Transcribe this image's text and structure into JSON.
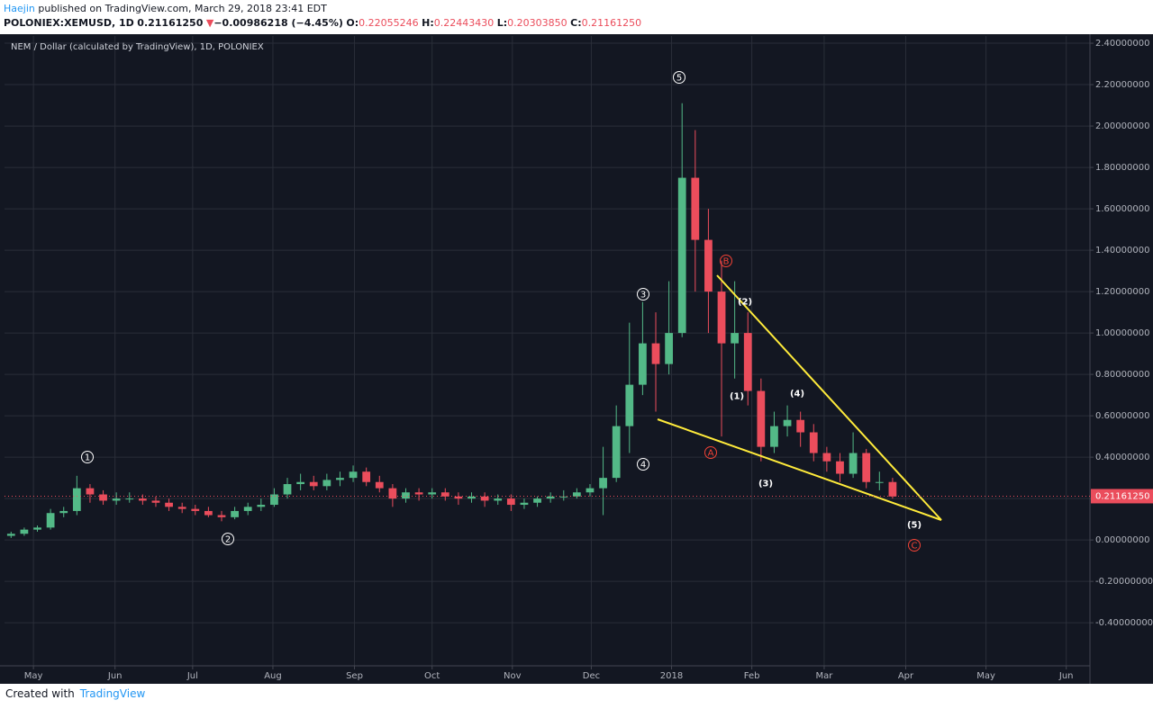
{
  "header": {
    "author": "Haejin",
    "published": "published on TradingView.com, March 29, 2018 23:41 EDT",
    "symbol": "POLONIEX:XEMUSD, 1D",
    "last": "0.21161250",
    "arrow": "▼",
    "change": "−0.00986218 (−4.45%)",
    "open_label": "O:",
    "open": "0.22055246",
    "high_label": "H:",
    "high": "0.22443430",
    "low_label": "L:",
    "low": "0.20303850",
    "close_label": "C:",
    "close": "0.21161250"
  },
  "chart_data": {
    "type": "candlestick",
    "title": "NEM / Dollar (calculated by TradingView), 1D, POLONIEX",
    "up_color": "#53b987",
    "down_color": "#eb4d5c",
    "grid": true,
    "open": [
      0.02,
      0.03,
      0.05,
      0.06,
      0.13,
      0.14,
      0.25,
      0.22,
      0.19,
      0.2,
      0.2,
      0.19,
      0.18,
      0.16,
      0.15,
      0.14,
      0.12,
      0.11,
      0.14,
      0.16,
      0.17,
      0.22,
      0.27,
      0.28,
      0.26,
      0.29,
      0.3,
      0.33,
      0.28,
      0.25,
      0.2,
      0.23,
      0.22,
      0.23,
      0.21,
      0.2,
      0.21,
      0.19,
      0.2,
      0.17,
      0.18,
      0.2,
      0.21,
      0.21,
      0.23,
      0.25,
      0.3,
      0.55,
      0.75,
      0.95,
      0.85,
      1.0,
      1.75,
      1.45,
      1.2,
      0.95,
      1.0,
      0.72,
      0.45,
      0.55,
      0.58,
      0.52,
      0.42,
      0.38,
      0.32,
      0.42,
      0.28,
      0.28
    ],
    "high": [
      0.04,
      0.06,
      0.07,
      0.15,
      0.16,
      0.31,
      0.27,
      0.24,
      0.23,
      0.23,
      0.22,
      0.21,
      0.2,
      0.18,
      0.17,
      0.16,
      0.14,
      0.16,
      0.18,
      0.2,
      0.25,
      0.3,
      0.32,
      0.31,
      0.32,
      0.33,
      0.36,
      0.35,
      0.31,
      0.27,
      0.25,
      0.25,
      0.25,
      0.25,
      0.23,
      0.23,
      0.23,
      0.22,
      0.22,
      0.2,
      0.21,
      0.23,
      0.24,
      0.25,
      0.27,
      0.45,
      0.65,
      1.05,
      1.15,
      1.1,
      1.25,
      2.11,
      1.98,
      1.6,
      1.35,
      1.25,
      1.1,
      0.78,
      0.62,
      0.65,
      0.62,
      0.56,
      0.45,
      0.42,
      0.52,
      0.44,
      0.33,
      0.3
    ],
    "low": [
      0.01,
      0.02,
      0.04,
      0.05,
      0.11,
      0.12,
      0.18,
      0.17,
      0.17,
      0.18,
      0.17,
      0.16,
      0.14,
      0.13,
      0.12,
      0.11,
      0.09,
      0.1,
      0.12,
      0.14,
      0.16,
      0.2,
      0.24,
      0.24,
      0.24,
      0.26,
      0.28,
      0.26,
      0.23,
      0.16,
      0.18,
      0.19,
      0.2,
      0.19,
      0.17,
      0.18,
      0.16,
      0.17,
      0.14,
      0.15,
      0.16,
      0.18,
      0.19,
      0.2,
      0.21,
      0.12,
      0.28,
      0.42,
      0.7,
      0.62,
      0.8,
      0.98,
      1.2,
      1.0,
      0.5,
      0.78,
      0.65,
      0.38,
      0.42,
      0.5,
      0.45,
      0.38,
      0.33,
      0.28,
      0.3,
      0.25,
      0.24,
      0.2
    ],
    "close": [
      0.03,
      0.05,
      0.06,
      0.13,
      0.14,
      0.25,
      0.22,
      0.19,
      0.2,
      0.2,
      0.19,
      0.18,
      0.16,
      0.15,
      0.14,
      0.12,
      0.11,
      0.14,
      0.16,
      0.17,
      0.22,
      0.27,
      0.28,
      0.26,
      0.29,
      0.3,
      0.33,
      0.28,
      0.25,
      0.2,
      0.23,
      0.22,
      0.23,
      0.21,
      0.2,
      0.21,
      0.19,
      0.2,
      0.17,
      0.18,
      0.2,
      0.21,
      0.21,
      0.23,
      0.25,
      0.3,
      0.55,
      0.75,
      0.95,
      0.85,
      1.0,
      1.75,
      1.45,
      1.2,
      0.95,
      1.0,
      0.72,
      0.45,
      0.55,
      0.58,
      0.52,
      0.42,
      0.38,
      0.32,
      0.42,
      0.28,
      0.28,
      0.21
    ],
    "xlim": [
      -0.5,
      82
    ],
    "xticks": [
      {
        "value": 1.7,
        "label": "May"
      },
      {
        "value": 7.9,
        "label": "Jun"
      },
      {
        "value": 13.8,
        "label": "Jul"
      },
      {
        "value": 19.9,
        "label": "Aug"
      },
      {
        "value": 26.1,
        "label": "Sep"
      },
      {
        "value": 32,
        "label": "Oct"
      },
      {
        "value": 38.1,
        "label": "Nov"
      },
      {
        "value": 44.1,
        "label": "Dec"
      },
      {
        "value": 50.2,
        "label": "2018"
      },
      {
        "value": 56.3,
        "label": "Feb"
      },
      {
        "value": 61.8,
        "label": "Mar"
      },
      {
        "value": 68,
        "label": "Apr"
      },
      {
        "value": 74.1,
        "label": "May"
      },
      {
        "value": 80.2,
        "label": "Jun"
      }
    ],
    "ylim": [
      -0.608,
      2.435
    ],
    "yticks": [
      {
        "value": -0.4,
        "label": "-0.40000000"
      },
      {
        "value": -0.2,
        "label": "-0.20000000"
      },
      {
        "value": 0,
        "label": "0.00000000"
      },
      {
        "value": 0.2,
        "label": "0.20000000"
      },
      {
        "value": 0.4,
        "label": "0.40000000"
      },
      {
        "value": 0.6,
        "label": "0.60000000"
      },
      {
        "value": 0.8,
        "label": "0.80000000"
      },
      {
        "value": 1.0,
        "label": "1.00000000"
      },
      {
        "value": 1.2,
        "label": "1.20000000"
      },
      {
        "value": 1.4,
        "label": "1.40000000"
      },
      {
        "value": 1.6,
        "label": "1.60000000"
      },
      {
        "value": 1.8,
        "label": "1.80000000"
      },
      {
        "value": 2.0,
        "label": "2.00000000"
      },
      {
        "value": 2.2,
        "label": "2.20000000"
      },
      {
        "value": 2.4,
        "label": "2.40000000"
      }
    ],
    "last_price": {
      "value": 0.2116125,
      "label": "0.21161250"
    },
    "annotations": [
      {
        "text": "1",
        "circled": true,
        "color": "#ffffff"
      },
      {
        "text": "2",
        "circled": true,
        "color": "#ffffff"
      },
      {
        "text": "3",
        "circled": true,
        "color": "#ffffff"
      },
      {
        "text": "4",
        "circled": true,
        "color": "#ffffff"
      },
      {
        "text": "5",
        "circled": true,
        "color": "#ffffff"
      },
      {
        "text": "A",
        "circled": true,
        "color": "#f44336"
      },
      {
        "text": "B",
        "circled": true,
        "color": "#f44336"
      },
      {
        "text": "C",
        "circled": true,
        "color": "#f44336"
      },
      {
        "text": "(1)",
        "circled": false,
        "color": "#ffffff"
      },
      {
        "text": "(2)",
        "circled": false,
        "color": "#ffffff"
      },
      {
        "text": "(3)",
        "circled": false,
        "color": "#ffffff"
      },
      {
        "text": "(4)",
        "circled": false,
        "color": "#ffffff"
      },
      {
        "text": "(5)",
        "circled": false,
        "color": "#ffffff"
      }
    ]
  },
  "footer": {
    "created": "Created with",
    "brand": "TradingView"
  }
}
